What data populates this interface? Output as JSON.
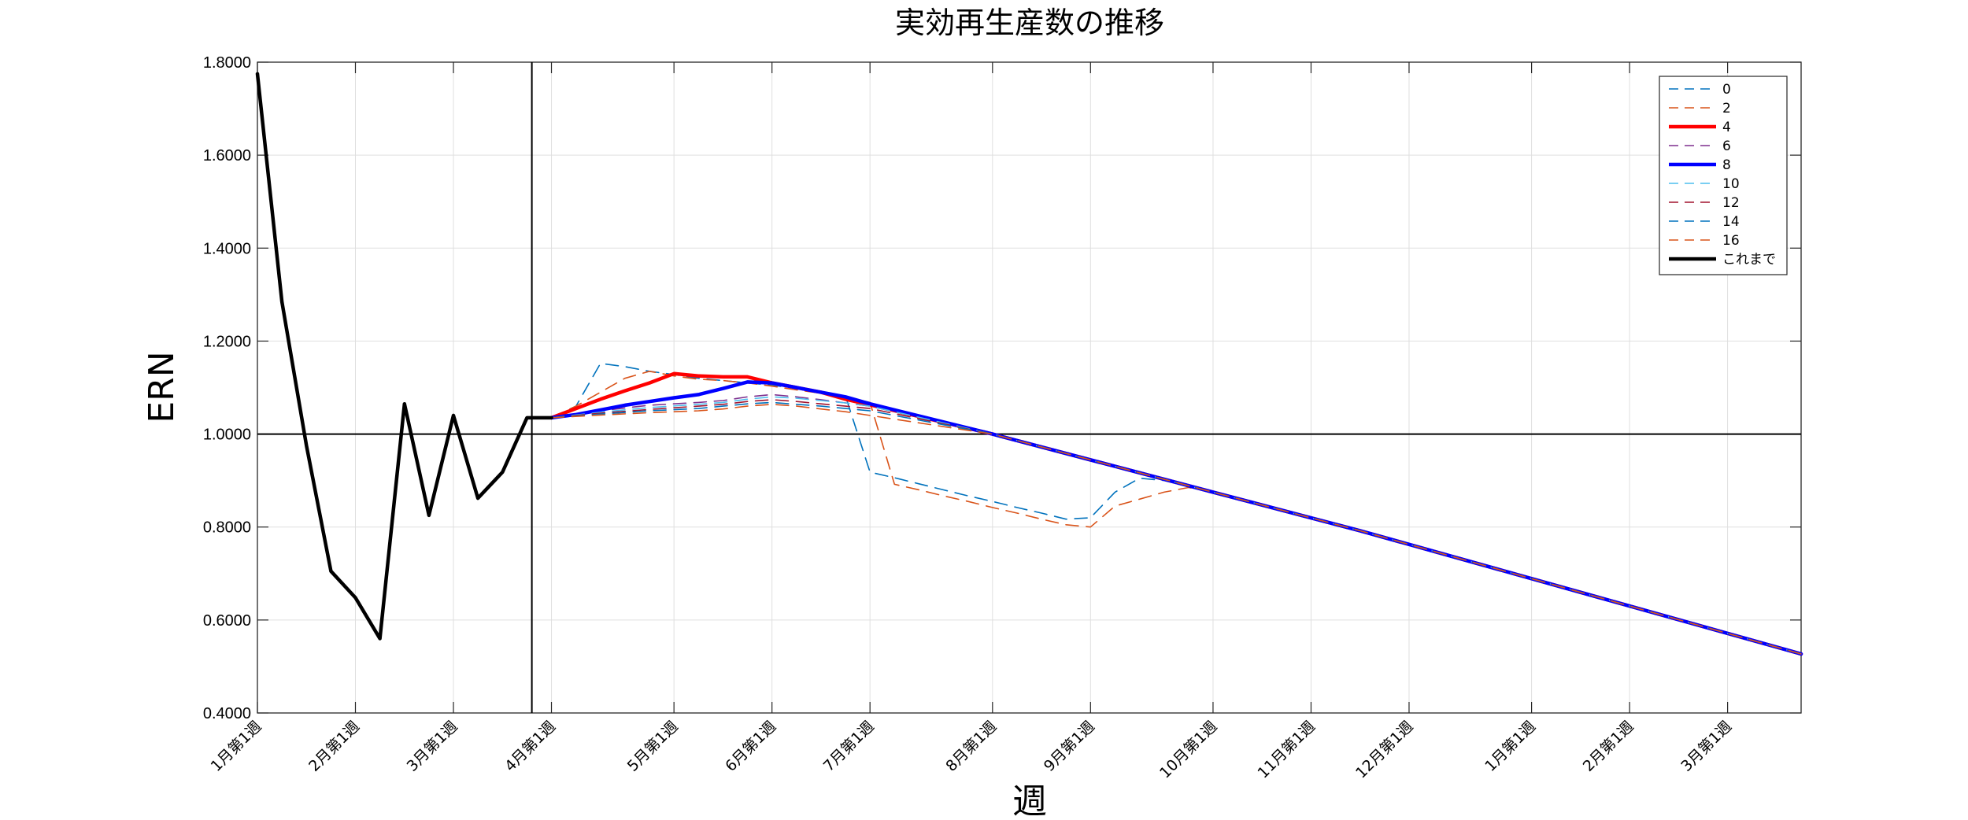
{
  "chart_data": {
    "type": "line",
    "title": "実効再生産数の推移",
    "xlabel": "週",
    "ylabel": "ERN",
    "ylim": [
      0.4,
      1.8
    ],
    "yticks": [
      "0.4000",
      "0.6000",
      "0.8000",
      "1.0000",
      "1.2000",
      "1.4000",
      "1.6000",
      "1.8000"
    ],
    "xlim": [
      0,
      63
    ],
    "grid": true,
    "reference_lines": {
      "y": 1.0,
      "x": 11.2
    },
    "legend_position": "top-right",
    "x_ticks": [
      {
        "x": 0,
        "label": "1月第1週"
      },
      {
        "x": 4,
        "label": "2月第1週"
      },
      {
        "x": 8,
        "label": "3月第1週"
      },
      {
        "x": 12,
        "label": "4月第1週"
      },
      {
        "x": 17,
        "label": "5月第1週"
      },
      {
        "x": 21,
        "label": "6月第1週"
      },
      {
        "x": 25,
        "label": "7月第1週"
      },
      {
        "x": 30,
        "label": "8月第1週"
      },
      {
        "x": 34,
        "label": "9月第1週"
      },
      {
        "x": 39,
        "label": "10月第1週"
      },
      {
        "x": 43,
        "label": "11月第1週"
      },
      {
        "x": 47,
        "label": "12月第1週"
      },
      {
        "x": 52,
        "label": "1月第1週"
      },
      {
        "x": 56,
        "label": "2月第1週"
      },
      {
        "x": 60,
        "label": "3月第1週"
      }
    ],
    "series": [
      {
        "name": "0",
        "color": "#0072BD",
        "dash": true,
        "width": 1.6,
        "points": [
          [
            12,
            1.035
          ],
          [
            13,
            1.06
          ],
          [
            14,
            1.152
          ],
          [
            15,
            1.145
          ],
          [
            16,
            1.135
          ],
          [
            17,
            1.128
          ],
          [
            18,
            1.12
          ],
          [
            19,
            1.115
          ],
          [
            20,
            1.11
          ],
          [
            21,
            1.105
          ],
          [
            22,
            1.098
          ],
          [
            23,
            1.09
          ],
          [
            24,
            1.082
          ],
          [
            25,
            0.918
          ],
          [
            26,
            0.906
          ],
          [
            27,
            0.893
          ],
          [
            28,
            0.88
          ],
          [
            29,
            0.867
          ],
          [
            30,
            0.855
          ],
          [
            31,
            0.842
          ],
          [
            32,
            0.83
          ],
          [
            33,
            0.817
          ],
          [
            34,
            0.82
          ],
          [
            35,
            0.875
          ],
          [
            36,
            0.905
          ],
          [
            37,
            0.9
          ],
          [
            38,
            0.887
          ],
          [
            39,
            0.875
          ],
          [
            45,
            0.792
          ],
          [
            63,
            0.527
          ]
        ]
      },
      {
        "name": "2",
        "color": "#D95319",
        "dash": true,
        "width": 1.6,
        "points": [
          [
            12,
            1.035
          ],
          [
            13,
            1.06
          ],
          [
            14,
            1.09
          ],
          [
            15,
            1.12
          ],
          [
            16,
            1.135
          ],
          [
            17,
            1.125
          ],
          [
            18,
            1.118
          ],
          [
            19,
            1.115
          ],
          [
            20,
            1.11
          ],
          [
            21,
            1.103
          ],
          [
            22,
            1.095
          ],
          [
            23,
            1.088
          ],
          [
            24,
            1.08
          ],
          [
            25,
            1.068
          ],
          [
            26,
            0.892
          ],
          [
            27,
            0.88
          ],
          [
            28,
            0.867
          ],
          [
            29,
            0.855
          ],
          [
            30,
            0.842
          ],
          [
            31,
            0.83
          ],
          [
            32,
            0.817
          ],
          [
            33,
            0.805
          ],
          [
            34,
            0.8
          ],
          [
            35,
            0.845
          ],
          [
            36,
            0.86
          ],
          [
            37,
            0.875
          ],
          [
            38,
            0.885
          ],
          [
            39,
            0.875
          ],
          [
            45,
            0.792
          ],
          [
            63,
            0.527
          ]
        ]
      },
      {
        "name": "4",
        "color": "#FF0000",
        "dash": false,
        "width": 4.5,
        "points": [
          [
            12,
            1.035
          ],
          [
            13,
            1.055
          ],
          [
            14,
            1.075
          ],
          [
            15,
            1.093
          ],
          [
            16,
            1.11
          ],
          [
            17,
            1.13
          ],
          [
            18,
            1.125
          ],
          [
            19,
            1.123
          ],
          [
            20,
            1.123
          ],
          [
            21,
            1.11
          ],
          [
            22,
            1.1
          ],
          [
            23,
            1.09
          ],
          [
            24,
            1.075
          ],
          [
            25,
            1.063
          ],
          [
            30,
            1.0
          ],
          [
            39,
            0.875
          ],
          [
            45,
            0.792
          ],
          [
            63,
            0.527
          ]
        ]
      },
      {
        "name": "6",
        "color": "#7E2F8E",
        "dash": true,
        "width": 1.6,
        "points": [
          [
            12,
            1.035
          ],
          [
            14,
            1.05
          ],
          [
            16,
            1.062
          ],
          [
            18,
            1.068
          ],
          [
            19,
            1.072
          ],
          [
            20,
            1.08
          ],
          [
            21,
            1.085
          ],
          [
            22,
            1.08
          ],
          [
            23,
            1.074
          ],
          [
            24,
            1.067
          ],
          [
            25,
            1.06
          ],
          [
            30,
            1.0
          ],
          [
            39,
            0.875
          ],
          [
            45,
            0.792
          ],
          [
            63,
            0.527
          ]
        ]
      },
      {
        "name": "8",
        "color": "#0000FF",
        "dash": false,
        "width": 4.5,
        "points": [
          [
            12,
            1.035
          ],
          [
            13,
            1.042
          ],
          [
            14,
            1.052
          ],
          [
            15,
            1.062
          ],
          [
            16,
            1.07
          ],
          [
            17,
            1.078
          ],
          [
            18,
            1.085
          ],
          [
            19,
            1.098
          ],
          [
            20,
            1.112
          ],
          [
            21,
            1.11
          ],
          [
            22,
            1.1
          ],
          [
            23,
            1.09
          ],
          [
            24,
            1.08
          ],
          [
            25,
            1.065
          ],
          [
            30,
            1.0
          ],
          [
            39,
            0.875
          ],
          [
            45,
            0.792
          ],
          [
            63,
            0.527
          ]
        ]
      },
      {
        "name": "10",
        "color": "#4DBEEE",
        "dash": true,
        "width": 1.6,
        "points": [
          [
            12,
            1.035
          ],
          [
            14,
            1.047
          ],
          [
            16,
            1.057
          ],
          [
            18,
            1.064
          ],
          [
            19,
            1.068
          ],
          [
            20,
            1.075
          ],
          [
            21,
            1.08
          ],
          [
            22,
            1.077
          ],
          [
            23,
            1.072
          ],
          [
            24,
            1.067
          ],
          [
            25,
            1.06
          ],
          [
            30,
            1.0
          ],
          [
            39,
            0.875
          ],
          [
            45,
            0.792
          ],
          [
            63,
            0.527
          ]
        ]
      },
      {
        "name": "12",
        "color": "#A2142F",
        "dash": true,
        "width": 1.6,
        "points": [
          [
            12,
            1.035
          ],
          [
            14,
            1.045
          ],
          [
            16,
            1.053
          ],
          [
            18,
            1.06
          ],
          [
            19,
            1.064
          ],
          [
            20,
            1.07
          ],
          [
            21,
            1.074
          ],
          [
            22,
            1.07
          ],
          [
            23,
            1.065
          ],
          [
            24,
            1.06
          ],
          [
            25,
            1.055
          ],
          [
            30,
            1.0
          ],
          [
            39,
            0.875
          ],
          [
            45,
            0.792
          ],
          [
            63,
            0.527
          ]
        ]
      },
      {
        "name": "14",
        "color": "#0072BD",
        "dash": true,
        "width": 1.6,
        "points": [
          [
            12,
            1.035
          ],
          [
            14,
            1.043
          ],
          [
            16,
            1.05
          ],
          [
            18,
            1.055
          ],
          [
            19,
            1.06
          ],
          [
            20,
            1.065
          ],
          [
            21,
            1.068
          ],
          [
            22,
            1.064
          ],
          [
            23,
            1.06
          ],
          [
            24,
            1.055
          ],
          [
            25,
            1.05
          ],
          [
            30,
            1.0
          ],
          [
            39,
            0.875
          ],
          [
            45,
            0.792
          ],
          [
            63,
            0.527
          ]
        ]
      },
      {
        "name": "16",
        "color": "#D95319",
        "dash": true,
        "width": 1.6,
        "points": [
          [
            12,
            1.035
          ],
          [
            14,
            1.041
          ],
          [
            16,
            1.046
          ],
          [
            18,
            1.05
          ],
          [
            19,
            1.054
          ],
          [
            20,
            1.06
          ],
          [
            21,
            1.064
          ],
          [
            22,
            1.06
          ],
          [
            23,
            1.054
          ],
          [
            24,
            1.048
          ],
          [
            25,
            1.04
          ],
          [
            30,
            1.0
          ],
          [
            39,
            0.875
          ],
          [
            45,
            0.792
          ],
          [
            63,
            0.527
          ]
        ]
      },
      {
        "name": "これまで",
        "color": "#000000",
        "dash": false,
        "width": 4.5,
        "points": [
          [
            0,
            1.775
          ],
          [
            1,
            1.285
          ],
          [
            2,
            0.975
          ],
          [
            3,
            0.705
          ],
          [
            4,
            0.648
          ],
          [
            5,
            0.56
          ],
          [
            6,
            1.065
          ],
          [
            7,
            0.825
          ],
          [
            8,
            1.04
          ],
          [
            9,
            0.862
          ],
          [
            10,
            0.918
          ],
          [
            11,
            1.035
          ],
          [
            12,
            1.035
          ]
        ]
      }
    ]
  }
}
